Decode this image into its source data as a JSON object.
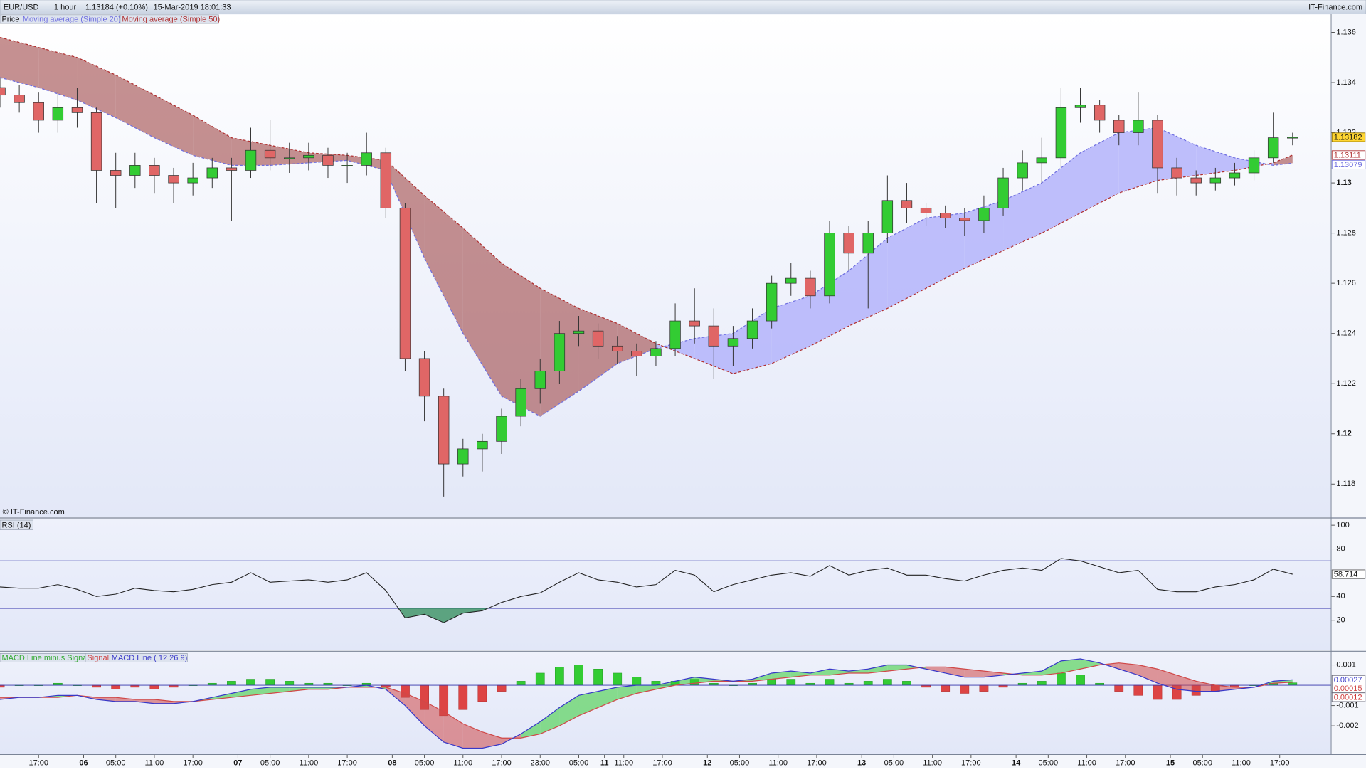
{
  "chart_data": [
    {
      "type": "candlestick",
      "title": "EUR/USD",
      "interval": "1 hour",
      "quote": "1.13184 (+0.10%)",
      "timestamp": "15-Mar-2019 18:01:33",
      "source": "IT-Finance.com",
      "copyright": "© IT-Finance.com",
      "price_legend": "Price",
      "up_color": "#33cc33",
      "down_color": "#e06666",
      "fill_above": "#b4b4fa",
      "fill_below": "#a04848",
      "last_color": "#ffd633",
      "xlim": [
        0,
        207
      ],
      "ylim": [
        1.1167,
        1.1367
      ],
      "yticks": [
        1.118,
        1.12,
        1.122,
        1.124,
        1.126,
        1.128,
        1.13,
        1.132,
        1.134,
        1.136
      ],
      "x": [
        0,
        3,
        6,
        9,
        12,
        15,
        18,
        21,
        24,
        27,
        30,
        33,
        36,
        39,
        42,
        45,
        48,
        51,
        54,
        57,
        60,
        63,
        66,
        69,
        72,
        75,
        78,
        81,
        84,
        87,
        90,
        93,
        96,
        99,
        102,
        105,
        108,
        111,
        114,
        117,
        120,
        123,
        126,
        129,
        132,
        135,
        138,
        141,
        144,
        147,
        150,
        153,
        156,
        159,
        162,
        165,
        168,
        171,
        174,
        177,
        180,
        183,
        186,
        189,
        192,
        195,
        198,
        201
      ],
      "open": [
        1.1338,
        1.1335,
        1.1332,
        1.1325,
        1.133,
        1.1328,
        1.1305,
        1.1303,
        1.1307,
        1.1303,
        1.13,
        1.1302,
        1.1306,
        1.1305,
        1.1313,
        1.131,
        1.131,
        1.1311,
        1.1307,
        1.1307,
        1.1312,
        1.129,
        1.123,
        1.1215,
        1.1188,
        1.1194,
        1.1197,
        1.1207,
        1.1218,
        1.1225,
        1.124,
        1.1241,
        1.1235,
        1.1233,
        1.1231,
        1.1234,
        1.1245,
        1.1243,
        1.1235,
        1.1238,
        1.1245,
        1.126,
        1.1262,
        1.1255,
        1.128,
        1.1272,
        1.128,
        1.1293,
        1.129,
        1.1288,
        1.1286,
        1.1285,
        1.129,
        1.1302,
        1.1308,
        1.131,
        1.133,
        1.1331,
        1.1325,
        1.132,
        1.1325,
        1.1306,
        1.1302,
        1.13,
        1.1302,
        1.1304,
        1.131,
        1.1318
      ],
      "high": [
        1.1342,
        1.1339,
        1.1336,
        1.1336,
        1.1338,
        1.133,
        1.1312,
        1.1312,
        1.131,
        1.1306,
        1.1308,
        1.131,
        1.131,
        1.1322,
        1.1325,
        1.1316,
        1.1316,
        1.1314,
        1.1312,
        1.132,
        1.1314,
        1.1292,
        1.1233,
        1.1218,
        1.1198,
        1.12,
        1.121,
        1.1222,
        1.123,
        1.1245,
        1.1247,
        1.1244,
        1.1239,
        1.1236,
        1.1237,
        1.1252,
        1.1258,
        1.125,
        1.1243,
        1.125,
        1.1263,
        1.1268,
        1.1265,
        1.1285,
        1.1283,
        1.1285,
        1.1303,
        1.13,
        1.1292,
        1.1291,
        1.129,
        1.1295,
        1.1306,
        1.1313,
        1.1318,
        1.1338,
        1.1338,
        1.1333,
        1.1327,
        1.1336,
        1.1327,
        1.131,
        1.1305,
        1.1306,
        1.1308,
        1.1313,
        1.1328,
        1.132
      ],
      "low": [
        1.133,
        1.1328,
        1.132,
        1.132,
        1.1322,
        1.1292,
        1.129,
        1.1298,
        1.1296,
        1.1292,
        1.1295,
        1.1298,
        1.1285,
        1.1302,
        1.1305,
        1.1304,
        1.1305,
        1.1302,
        1.13,
        1.1303,
        1.1286,
        1.1225,
        1.1205,
        1.1175,
        1.1183,
        1.1185,
        1.1192,
        1.1203,
        1.1212,
        1.122,
        1.1235,
        1.123,
        1.1228,
        1.1223,
        1.1227,
        1.1231,
        1.1236,
        1.1222,
        1.1227,
        1.1234,
        1.1242,
        1.1255,
        1.125,
        1.1252,
        1.1265,
        1.125,
        1.1276,
        1.1284,
        1.1283,
        1.1282,
        1.1279,
        1.128,
        1.1287,
        1.1297,
        1.13,
        1.1306,
        1.1324,
        1.132,
        1.1315,
        1.1315,
        1.1296,
        1.1295,
        1.1295,
        1.1297,
        1.1299,
        1.1301,
        1.1308,
        1.1315
      ],
      "close": [
        1.1335,
        1.1332,
        1.1325,
        1.133,
        1.1328,
        1.1305,
        1.1303,
        1.1307,
        1.1303,
        1.13,
        1.1302,
        1.1306,
        1.1305,
        1.1313,
        1.131,
        1.131,
        1.1311,
        1.1307,
        1.1307,
        1.1312,
        1.129,
        1.123,
        1.1215,
        1.1188,
        1.1194,
        1.1197,
        1.1207,
        1.1218,
        1.1225,
        1.124,
        1.1241,
        1.1235,
        1.1233,
        1.1231,
        1.1234,
        1.1245,
        1.1243,
        1.1235,
        1.1238,
        1.1245,
        1.126,
        1.1262,
        1.1255,
        1.128,
        1.1272,
        1.128,
        1.1293,
        1.129,
        1.1288,
        1.1286,
        1.1285,
        1.129,
        1.1302,
        1.1308,
        1.131,
        1.133,
        1.1331,
        1.1325,
        1.132,
        1.1325,
        1.1306,
        1.1302,
        1.13,
        1.1302,
        1.1304,
        1.131,
        1.1318,
        1.13182
      ],
      "series": [
        {
          "name": "Moving average (Simple 20)",
          "color": "#6f6fe0",
          "x": [
            0,
            6,
            12,
            18,
            24,
            30,
            36,
            42,
            48,
            54,
            60,
            66,
            72,
            78,
            84,
            90,
            96,
            102,
            108,
            114,
            120,
            126,
            132,
            138,
            144,
            150,
            156,
            162,
            168,
            174,
            180,
            186,
            192,
            198,
            201
          ],
          "values": [
            1.1342,
            1.1338,
            1.1333,
            1.1326,
            1.1318,
            1.1311,
            1.1307,
            1.1307,
            1.1308,
            1.1309,
            1.1305,
            1.127,
            1.124,
            1.1215,
            1.1207,
            1.1217,
            1.1228,
            1.1234,
            1.1238,
            1.124,
            1.125,
            1.1255,
            1.1265,
            1.1278,
            1.1286,
            1.1288,
            1.1293,
            1.13,
            1.1312,
            1.132,
            1.1322,
            1.1315,
            1.131,
            1.1307,
            1.13079
          ]
        },
        {
          "name": "Moving average (Simple 50)",
          "color": "#b03030",
          "x": [
            0,
            6,
            12,
            18,
            24,
            30,
            36,
            42,
            48,
            54,
            60,
            66,
            72,
            78,
            84,
            90,
            96,
            102,
            108,
            114,
            120,
            126,
            132,
            138,
            144,
            150,
            156,
            162,
            168,
            174,
            180,
            186,
            192,
            198,
            201
          ],
          "values": [
            1.1358,
            1.1354,
            1.135,
            1.1343,
            1.1335,
            1.1327,
            1.1318,
            1.1315,
            1.1312,
            1.1311,
            1.1309,
            1.1295,
            1.1282,
            1.1268,
            1.1258,
            1.125,
            1.1244,
            1.1236,
            1.123,
            1.1224,
            1.1228,
            1.1235,
            1.1243,
            1.125,
            1.1258,
            1.1266,
            1.1273,
            1.128,
            1.1288,
            1.1296,
            1.1301,
            1.1303,
            1.1305,
            1.1308,
            1.13111
          ]
        }
      ]
    },
    {
      "type": "line",
      "title": "RSI (14)",
      "color": "#222222",
      "fill_color": "#2e8b57",
      "level_color": "#3333aa",
      "xlim": [
        0,
        207
      ],
      "ylim": [
        -5,
        105
      ],
      "yticks": [
        20,
        40,
        80,
        100
      ],
      "levels": [
        70,
        30
      ],
      "x": [
        0,
        3,
        6,
        9,
        12,
        15,
        18,
        21,
        24,
        27,
        30,
        33,
        36,
        39,
        42,
        45,
        48,
        51,
        54,
        57,
        60,
        63,
        66,
        69,
        72,
        75,
        78,
        81,
        84,
        87,
        90,
        93,
        96,
        99,
        102,
        105,
        108,
        111,
        114,
        117,
        120,
        123,
        126,
        129,
        132,
        135,
        138,
        141,
        144,
        147,
        150,
        153,
        156,
        159,
        162,
        165,
        168,
        171,
        174,
        177,
        180,
        183,
        186,
        189,
        192,
        195,
        198,
        201
      ],
      "values": [
        48,
        47,
        47,
        50,
        46,
        40,
        42,
        47,
        45,
        44,
        46,
        50,
        52,
        60,
        52,
        53,
        54,
        52,
        54,
        60,
        45,
        22,
        25,
        18,
        26,
        28,
        35,
        40,
        43,
        52,
        60,
        54,
        52,
        48,
        50,
        62,
        58,
        44,
        50,
        54,
        58,
        60,
        57,
        66,
        58,
        62,
        64,
        58,
        58,
        55,
        53,
        58,
        62,
        64,
        62,
        72,
        70,
        65,
        60,
        62,
        46,
        44,
        44,
        48,
        50,
        54,
        63,
        58.714
      ]
    },
    {
      "type": "macd",
      "zero_color": "#3333aa",
      "xlim": [
        0,
        207
      ],
      "ylim": [
        -0.00337,
        0.00161
      ],
      "yticks": [
        -0.002,
        -0.001,
        0.001
      ],
      "x": [
        0,
        3,
        6,
        9,
        12,
        15,
        18,
        21,
        24,
        27,
        30,
        33,
        36,
        39,
        42,
        45,
        48,
        51,
        54,
        57,
        60,
        63,
        66,
        69,
        72,
        75,
        78,
        81,
        84,
        87,
        90,
        93,
        96,
        99,
        102,
        105,
        108,
        111,
        114,
        117,
        120,
        123,
        126,
        129,
        132,
        135,
        138,
        141,
        144,
        147,
        150,
        153,
        156,
        159,
        162,
        165,
        168,
        171,
        174,
        177,
        180,
        183,
        186,
        189,
        192,
        195,
        198,
        201
      ],
      "series": [
        {
          "name": "MACD Line minus Signal",
          "color": "#33cc33",
          "negative_color": "#dd4444",
          "values": [
            -0.0001,
            0,
            0,
            0.0001,
            0,
            -0.0001,
            -0.0002,
            -0.0001,
            -0.0002,
            -0.0001,
            0,
            0.0001,
            0.0002,
            0.0003,
            0.0003,
            0.0002,
            0.0001,
            0.0001,
            0,
            0.0001,
            -0.0001,
            -0.0006,
            -0.0012,
            -0.0015,
            -0.0012,
            -0.0008,
            -0.0003,
            0.0002,
            0.0006,
            0.0009,
            0.001,
            0.0008,
            0.0006,
            0.0004,
            0.0002,
            0.0002,
            0.0003,
            0.0001,
            0,
            0.0001,
            0.0003,
            0.0003,
            0.0001,
            0.0003,
            0.0001,
            0.0002,
            0.0003,
            0.0002,
            -0.0001,
            -0.0003,
            -0.0004,
            -0.0003,
            -0.0001,
            0.0001,
            0.0002,
            0.0006,
            0.0005,
            0.0001,
            -0.0003,
            -0.0005,
            -0.0007,
            -0.0007,
            -0.0005,
            -0.0003,
            -0.0001,
            0,
            0.0001,
            0.00012
          ]
        },
        {
          "name": "Signal",
          "color": "#d04848",
          "values": [
            -0.0006,
            -0.0006,
            -0.0006,
            -0.0006,
            -0.0005,
            -0.0006,
            -0.0006,
            -0.0007,
            -0.0007,
            -0.0008,
            -0.0008,
            -0.0007,
            -0.0006,
            -0.0005,
            -0.0004,
            -0.0003,
            -0.0002,
            -0.0002,
            -0.0001,
            -0.0001,
            -0.0001,
            -0.0004,
            -0.0008,
            -0.0013,
            -0.0019,
            -0.0023,
            -0.0026,
            -0.0026,
            -0.0024,
            -0.002,
            -0.0015,
            -0.0011,
            -0.0007,
            -0.0004,
            -0.0002,
            0,
            0.0001,
            0.0002,
            0.0002,
            0.0002,
            0.0003,
            0.0004,
            0.0005,
            0.0005,
            0.0006,
            0.0006,
            0.0007,
            0.0008,
            0.0009,
            0.0009,
            0.0008,
            0.0007,
            0.0006,
            0.0005,
            0.0005,
            0.0006,
            0.0008,
            0.001,
            0.0011,
            0.001,
            0.0008,
            0.0005,
            0.0002,
            0,
            -0.0001,
            -0.0001,
            0.0001,
            0.00015
          ]
        },
        {
          "name": "MACD Line ( 12 26 9)",
          "color": "#3838c8",
          "values": [
            -0.0007,
            -0.0006,
            -0.0006,
            -0.0005,
            -0.0005,
            -0.0007,
            -0.0008,
            -0.0008,
            -0.0009,
            -0.0009,
            -0.0008,
            -0.0006,
            -0.0004,
            -0.0002,
            -0.0001,
            -0.0001,
            -0.0001,
            -0.0001,
            -0.0001,
            0,
            -0.0002,
            -0.001,
            -0.002,
            -0.0028,
            -0.0031,
            -0.0031,
            -0.0029,
            -0.0024,
            -0.0018,
            -0.0011,
            -0.0005,
            -0.0003,
            -0.0001,
            0,
            0,
            0.0002,
            0.0004,
            0.0003,
            0.0002,
            0.0003,
            0.0006,
            0.0007,
            0.0006,
            0.0008,
            0.0007,
            0.0008,
            0.001,
            0.001,
            0.0008,
            0.0006,
            0.0004,
            0.0004,
            0.0005,
            0.0006,
            0.0007,
            0.0012,
            0.0013,
            0.0011,
            0.0008,
            0.0005,
            0.0001,
            -0.0002,
            -0.0003,
            -0.0003,
            -0.0002,
            -0.0001,
            0.0002,
            0.00027
          ]
        }
      ],
      "xticks": [
        {
          "value": 6,
          "label": "17:00"
        },
        {
          "value": 13,
          "label": "06"
        },
        {
          "value": 18,
          "label": "05:00"
        },
        {
          "value": 24,
          "label": "11:00"
        },
        {
          "value": 30,
          "label": "17:00"
        },
        {
          "value": 37,
          "label": "07"
        },
        {
          "value": 42,
          "label": "05:00"
        },
        {
          "value": 48,
          "label": "11:00"
        },
        {
          "value": 54,
          "label": "17:00"
        },
        {
          "value": 61,
          "label": "08"
        },
        {
          "value": 66,
          "label": "05:00"
        },
        {
          "value": 72,
          "label": "11:00"
        },
        {
          "value": 78,
          "label": "17:00"
        },
        {
          "value": 84,
          "label": "23:00"
        },
        {
          "value": 90,
          "label": "05:00"
        },
        {
          "value": 94,
          "label": "11"
        },
        {
          "value": 97,
          "label": "11:00"
        },
        {
          "value": 103,
          "label": "17:00"
        },
        {
          "value": 110,
          "label": "12"
        },
        {
          "value": 115,
          "label": "05:00"
        },
        {
          "value": 121,
          "label": "11:00"
        },
        {
          "value": 127,
          "label": "17:00"
        },
        {
          "value": 134,
          "label": "13"
        },
        {
          "value": 139,
          "label": "05:00"
        },
        {
          "value": 145,
          "label": "11:00"
        },
        {
          "value": 151,
          "label": "17:00"
        },
        {
          "value": 158,
          "label": "14"
        },
        {
          "value": 163,
          "label": "05:00"
        },
        {
          "value": 169,
          "label": "11:00"
        },
        {
          "value": 175,
          "label": "17:00"
        },
        {
          "value": 182,
          "label": "15"
        },
        {
          "value": 187,
          "label": "05:00"
        },
        {
          "value": 193,
          "label": "11:00"
        },
        {
          "value": 199,
          "label": "17:00"
        }
      ]
    }
  ]
}
